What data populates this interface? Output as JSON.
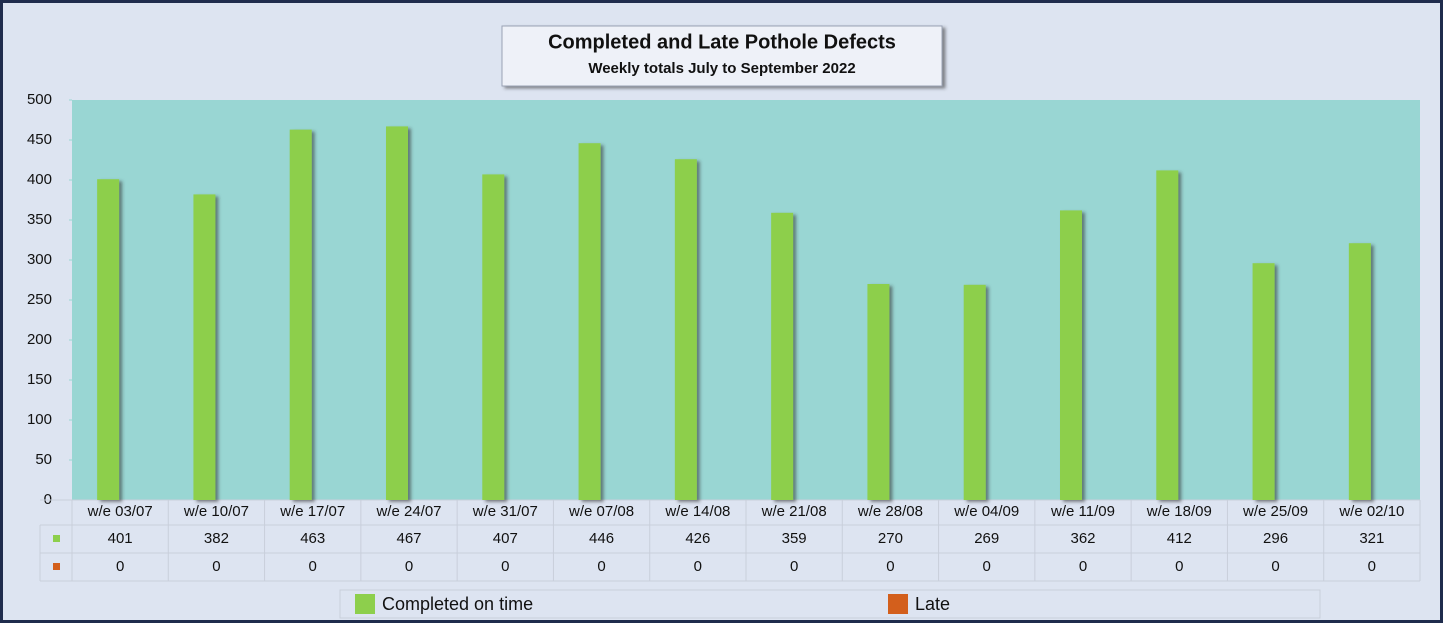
{
  "chart_data": {
    "type": "bar",
    "title": "Completed and Late Pothole Defects",
    "subtitle": "Weekly totals July to September 2022",
    "categories": [
      "w/e 03/07",
      "w/e 10/07",
      "w/e 17/07",
      "w/e 24/07",
      "w/e 31/07",
      "w/e 07/08",
      "w/e 14/08",
      "w/e 21/08",
      "w/e 28/08",
      "w/e 04/09",
      "w/e 11/09",
      "w/e 18/09",
      "w/e 25/09",
      "w/e 02/10"
    ],
    "series": [
      {
        "name": "Completed on time",
        "color": "#8dcf4c",
        "values": [
          401,
          382,
          463,
          467,
          407,
          446,
          426,
          359,
          270,
          269,
          362,
          412,
          296,
          321
        ]
      },
      {
        "name": "Late",
        "color": "#d35f1c",
        "values": [
          0,
          0,
          0,
          0,
          0,
          0,
          0,
          0,
          0,
          0,
          0,
          0,
          0,
          0
        ]
      }
    ],
    "ylim": [
      0,
      500
    ],
    "yticks": [
      0,
      50,
      100,
      150,
      200,
      250,
      300,
      350,
      400,
      450,
      500
    ],
    "legend": "bottom",
    "data_table": true
  }
}
